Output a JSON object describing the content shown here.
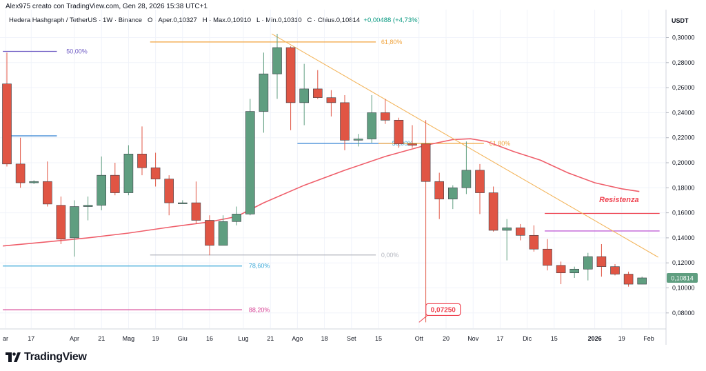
{
  "credit": "Alex975 creato con TradingView.com, Gen 28, 2026 15:38 UTC+1",
  "legend": {
    "symbol": "Hedera Hashgraph / TetherUS · 1W · Binance",
    "open": "O · Aper.0,10327",
    "high": "H · Max.0,10910",
    "low": "L · Min.0,10310",
    "close": "C · Chius.0,10814",
    "change": "+0,00488 (+4,73%)"
  },
  "currency": "USDT",
  "last_price_label": "0,10814",
  "logo_text": "TradingView",
  "colors": {
    "up": "#5f9e80",
    "down": "#e05544",
    "ma": "#ef5e6a",
    "trend": "#f3b55c",
    "fib_purple": "#6e5bc4",
    "fib_blue": "#2e7fd2",
    "fib_cyan": "#3aa8d8",
    "fib_pink": "#d63f93",
    "fib_orange": "#f0a23a",
    "res_red": "#ef4350",
    "res_violet": "#c160d6"
  },
  "chart_data": {
    "type": "candlestick",
    "y_axis": {
      "range": [
        0.0725,
        0.3075
      ],
      "ticks": [
        0.3,
        0.28,
        0.26,
        0.24,
        0.22,
        0.2,
        0.18,
        0.16,
        0.14,
        0.12,
        0.1,
        0.08
      ],
      "tick_labels": [
        "0,30000",
        "0,28000",
        "0,26000",
        "0,24000",
        "0,22000",
        "0,20000",
        "0,18000",
        "0,16000",
        "0,14000",
        "0,12000",
        "0,10000",
        "0,08000"
      ]
    },
    "x_axis": {
      "labels": [
        {
          "i": -0.1,
          "text": "ar"
        },
        {
          "i": 1.8,
          "text": "17"
        },
        {
          "i": 5.0,
          "text": "Apr"
        },
        {
          "i": 7.0,
          "text": "21"
        },
        {
          "i": 9.0,
          "text": "Mag"
        },
        {
          "i": 11.0,
          "text": "19"
        },
        {
          "i": 13.0,
          "text": "Giu"
        },
        {
          "i": 15.0,
          "text": "16"
        },
        {
          "i": 17.5,
          "text": "Lug"
        },
        {
          "i": 19.5,
          "text": "21"
        },
        {
          "i": 21.5,
          "text": "Ago"
        },
        {
          "i": 23.5,
          "text": "18"
        },
        {
          "i": 25.5,
          "text": "Set"
        },
        {
          "i": 27.5,
          "text": "15"
        },
        {
          "i": 30.5,
          "text": "Ott"
        },
        {
          "i": 32.5,
          "text": "20"
        },
        {
          "i": 34.5,
          "text": "Nov"
        },
        {
          "i": 36.5,
          "text": "17"
        },
        {
          "i": 38.5,
          "text": "Dic"
        },
        {
          "i": 40.5,
          "text": "15"
        },
        {
          "i": 43.5,
          "text": "2026",
          "bold": true
        },
        {
          "i": 45.5,
          "text": "19"
        },
        {
          "i": 47.5,
          "text": "Feb"
        }
      ]
    },
    "candles": [
      {
        "o": 0.263,
        "h": 0.288,
        "l": 0.197,
        "c": 0.199
      },
      {
        "o": 0.199,
        "h": 0.22,
        "l": 0.18,
        "c": 0.184
      },
      {
        "o": 0.184,
        "h": 0.186,
        "l": 0.183,
        "c": 0.185
      },
      {
        "o": 0.185,
        "h": 0.201,
        "l": 0.165,
        "c": 0.167
      },
      {
        "o": 0.166,
        "h": 0.173,
        "l": 0.135,
        "c": 0.139
      },
      {
        "o": 0.14,
        "h": 0.17,
        "l": 0.125,
        "c": 0.165
      },
      {
        "o": 0.165,
        "h": 0.173,
        "l": 0.154,
        "c": 0.166
      },
      {
        "o": 0.166,
        "h": 0.205,
        "l": 0.162,
        "c": 0.19
      },
      {
        "o": 0.19,
        "h": 0.2,
        "l": 0.174,
        "c": 0.176
      },
      {
        "o": 0.176,
        "h": 0.214,
        "l": 0.174,
        "c": 0.207
      },
      {
        "o": 0.207,
        "h": 0.229,
        "l": 0.19,
        "c": 0.196
      },
      {
        "o": 0.196,
        "h": 0.208,
        "l": 0.181,
        "c": 0.187
      },
      {
        "o": 0.187,
        "h": 0.19,
        "l": 0.158,
        "c": 0.168
      },
      {
        "o": 0.168,
        "h": 0.17,
        "l": 0.168,
        "c": 0.168
      },
      {
        "o": 0.168,
        "h": 0.185,
        "l": 0.151,
        "c": 0.154
      },
      {
        "o": 0.154,
        "h": 0.158,
        "l": 0.126,
        "c": 0.134
      },
      {
        "o": 0.134,
        "h": 0.158,
        "l": 0.134,
        "c": 0.153
      },
      {
        "o": 0.153,
        "h": 0.165,
        "l": 0.15,
        "c": 0.159
      },
      {
        "o": 0.159,
        "h": 0.251,
        "l": 0.158,
        "c": 0.241
      },
      {
        "o": 0.241,
        "h": 0.288,
        "l": 0.224,
        "c": 0.271
      },
      {
        "o": 0.271,
        "h": 0.303,
        "l": 0.251,
        "c": 0.292
      },
      {
        "o": 0.292,
        "h": 0.293,
        "l": 0.226,
        "c": 0.248
      },
      {
        "o": 0.248,
        "h": 0.279,
        "l": 0.23,
        "c": 0.259
      },
      {
        "o": 0.259,
        "h": 0.274,
        "l": 0.251,
        "c": 0.252
      },
      {
        "o": 0.252,
        "h": 0.258,
        "l": 0.237,
        "c": 0.248
      },
      {
        "o": 0.248,
        "h": 0.254,
        "l": 0.21,
        "c": 0.218
      },
      {
        "o": 0.218,
        "h": 0.223,
        "l": 0.213,
        "c": 0.219
      },
      {
        "o": 0.219,
        "h": 0.254,
        "l": 0.216,
        "c": 0.24
      },
      {
        "o": 0.24,
        "h": 0.251,
        "l": 0.231,
        "c": 0.234
      },
      {
        "o": 0.234,
        "h": 0.236,
        "l": 0.212,
        "c": 0.215
      },
      {
        "o": 0.215,
        "h": 0.23,
        "l": 0.212,
        "c": 0.214
      },
      {
        "o": 0.215,
        "h": 0.234,
        "l": 0.0725,
        "c": 0.185
      },
      {
        "o": 0.185,
        "h": 0.192,
        "l": 0.155,
        "c": 0.171
      },
      {
        "o": 0.171,
        "h": 0.182,
        "l": 0.163,
        "c": 0.18
      },
      {
        "o": 0.18,
        "h": 0.217,
        "l": 0.175,
        "c": 0.194
      },
      {
        "o": 0.194,
        "h": 0.199,
        "l": 0.159,
        "c": 0.176
      },
      {
        "o": 0.176,
        "h": 0.181,
        "l": 0.145,
        "c": 0.146
      },
      {
        "o": 0.146,
        "h": 0.155,
        "l": 0.122,
        "c": 0.148
      },
      {
        "o": 0.148,
        "h": 0.151,
        "l": 0.138,
        "c": 0.142
      },
      {
        "o": 0.142,
        "h": 0.15,
        "l": 0.129,
        "c": 0.131
      },
      {
        "o": 0.131,
        "h": 0.139,
        "l": 0.114,
        "c": 0.118
      },
      {
        "o": 0.118,
        "h": 0.121,
        "l": 0.103,
        "c": 0.112
      },
      {
        "o": 0.112,
        "h": 0.117,
        "l": 0.108,
        "c": 0.115
      },
      {
        "o": 0.115,
        "h": 0.128,
        "l": 0.106,
        "c": 0.125
      },
      {
        "o": 0.125,
        "h": 0.135,
        "l": 0.109,
        "c": 0.117
      },
      {
        "o": 0.117,
        "h": 0.119,
        "l": 0.11,
        "c": 0.111
      },
      {
        "o": 0.111,
        "h": 0.113,
        "l": 0.101,
        "c": 0.103
      },
      {
        "o": 0.103,
        "h": 0.109,
        "l": 0.103,
        "c": 0.108
      }
    ],
    "moving_average": [
      {
        "i": -0.3,
        "v": 0.1335
      },
      {
        "i": 3,
        "v": 0.1368
      },
      {
        "i": 6,
        "v": 0.14
      },
      {
        "i": 9,
        "v": 0.1438
      },
      {
        "i": 12,
        "v": 0.1485
      },
      {
        "i": 15,
        "v": 0.1527
      },
      {
        "i": 17,
        "v": 0.157
      },
      {
        "i": 19,
        "v": 0.168
      },
      {
        "i": 22,
        "v": 0.182
      },
      {
        "i": 25,
        "v": 0.194
      },
      {
        "i": 28,
        "v": 0.205
      },
      {
        "i": 31,
        "v": 0.214
      },
      {
        "i": 33,
        "v": 0.2185
      },
      {
        "i": 34.3,
        "v": 0.2192
      },
      {
        "i": 35.5,
        "v": 0.217
      },
      {
        "i": 37.5,
        "v": 0.209
      },
      {
        "i": 39.5,
        "v": 0.202
      },
      {
        "i": 41.5,
        "v": 0.192
      },
      {
        "i": 43.5,
        "v": 0.184
      },
      {
        "i": 45.5,
        "v": 0.1792
      },
      {
        "i": 46.8,
        "v": 0.177
      }
    ],
    "trendline": {
      "from": {
        "i": 19.6,
        "v": 0.303
      },
      "to": {
        "i": 48.2,
        "v": 0.1245
      }
    },
    "levels": [
      {
        "from": -0.3,
        "to": 3.7,
        "v": 0.289,
        "color_key": "fib_purple",
        "label": "50,00%",
        "label_i": 4.4,
        "label_color_key": "fib_purple"
      },
      {
        "from": -0.3,
        "to": 3.7,
        "v": 0.2215,
        "color_key": "fib_blue",
        "label": "",
        "label_i": 0,
        "label_color_key": "fib_blue"
      },
      {
        "from": 10.6,
        "to": 27.3,
        "v": 0.2965,
        "color_key": "fib_orange",
        "label": "61,80%",
        "label_i": 27.7,
        "label_color_key": "fib_orange"
      },
      {
        "from": 21.5,
        "to": 29.0,
        "v": 0.2155,
        "color_key": "fib_blue",
        "label": "50,00%",
        "label_i": 28.5,
        "label_color_key": "fib_cyan"
      },
      {
        "from": 27.5,
        "to": 35.3,
        "v": 0.2155,
        "color_key": "fib_orange",
        "label": "61,80%",
        "label_i": 35.7,
        "label_color_key": "fib_orange"
      },
      {
        "from": 10.6,
        "to": 27.3,
        "v": 0.1263,
        "color_key": "grey",
        "label": "0,00%",
        "label_i": 27.7,
        "label_color_key": "grey"
      },
      {
        "from": -0.3,
        "to": 17.4,
        "v": 0.1175,
        "color_key": "fib_cyan",
        "label": "78,60%",
        "label_i": 17.9,
        "label_color_key": "fib_cyan"
      },
      {
        "from": -0.3,
        "to": 17.4,
        "v": 0.0825,
        "color_key": "fib_pink",
        "label": "88,20%",
        "label_i": 17.9,
        "label_color_key": "fib_pink"
      },
      {
        "from": 39.8,
        "to": 48.3,
        "v": 0.1595,
        "color_key": "res_red",
        "label": "",
        "label_i": 0,
        "label_color_key": "res_red"
      },
      {
        "from": 39.8,
        "to": 48.3,
        "v": 0.1455,
        "color_key": "res_violet",
        "label": "",
        "label_i": 0,
        "label_color_key": "res_violet"
      }
    ],
    "annotations": [
      {
        "text": "Resistenza",
        "i": 45.3,
        "v": 0.1685,
        "style": "italic-bold",
        "color_key": "res_red"
      }
    ],
    "low_callout": {
      "text": "0,07250",
      "i": 30.6,
      "v": 0.0725
    }
  }
}
